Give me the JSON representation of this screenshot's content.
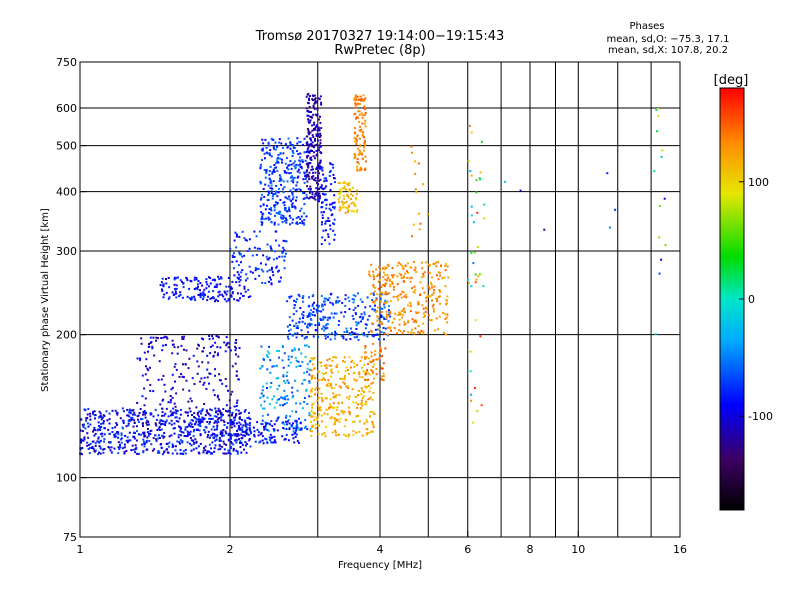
{
  "chart_data": {
    "type": "scatter",
    "title": "Tromsø 20170327 19:14:00−19:15:43",
    "subtitle": "RwPretec (8p)",
    "xlabel": "Frequency [MHz]",
    "ylabel": "Stationary phase Virtual Height [km]",
    "x_scale": "log",
    "y_scale": "log",
    "xlim": [
      1,
      16
    ],
    "ylim": [
      75,
      750
    ],
    "x_ticks": [
      1,
      2,
      4,
      6,
      8,
      10,
      16
    ],
    "x_grid_lines": [
      2,
      3,
      4,
      5,
      6,
      7,
      8,
      9,
      10,
      12,
      14
    ],
    "y_ticks": [
      75,
      100,
      200,
      300,
      400,
      500,
      600,
      750
    ],
    "y_grid_lines": [
      100,
      200,
      300,
      400,
      500,
      600
    ],
    "grid": true,
    "colorbar": {
      "label": "[deg]",
      "range": [
        -180,
        180
      ],
      "ticks": [
        100,
        0,
        -100
      ]
    },
    "stats": {
      "heading": "Phases",
      "line1": "mean, sd,O: −75.3, 17.1",
      "line2": "mean, sd,X: 107.8, 20.2"
    },
    "clusters": [
      {
        "x": [
          1.0,
          2.2
        ],
        "y": [
          112,
          140
        ],
        "phase": [
          -120,
          -60
        ],
        "n": 700
      },
      {
        "x": [
          1.3,
          2.1
        ],
        "y": [
          130,
          200
        ],
        "phase": [
          -130,
          -80
        ],
        "n": 230
      },
      {
        "x": [
          1.45,
          2.2
        ],
        "y": [
          235,
          265
        ],
        "phase": [
          -110,
          -70
        ],
        "n": 160
      },
      {
        "x": [
          2.0,
          2.6
        ],
        "y": [
          255,
          330
        ],
        "phase": [
          -100,
          -60
        ],
        "n": 110
      },
      {
        "x": [
          2.3,
          2.85
        ],
        "y": [
          340,
          520
        ],
        "phase": [
          -95,
          -50
        ],
        "n": 320
      },
      {
        "x": [
          2.85,
          3.05
        ],
        "y": [
          380,
          650
        ],
        "phase": [
          -135,
          -95
        ],
        "n": 230
      },
      {
        "x": [
          3.05,
          3.25
        ],
        "y": [
          310,
          460
        ],
        "phase": [
          -105,
          -65
        ],
        "n": 80
      },
      {
        "x": [
          3.3,
          3.6
        ],
        "y": [
          360,
          420
        ],
        "phase": [
          95,
          130
        ],
        "n": 70
      },
      {
        "x": [
          3.55,
          3.75
        ],
        "y": [
          440,
          640
        ],
        "phase": [
          120,
          150
        ],
        "n": 110
      },
      {
        "x": [
          2.6,
          4.2
        ],
        "y": [
          195,
          245
        ],
        "phase": [
          -90,
          -45
        ],
        "n": 280
      },
      {
        "x": [
          3.8,
          5.5
        ],
        "y": [
          200,
          285
        ],
        "phase": [
          110,
          150
        ],
        "n": 300
      },
      {
        "x": [
          2.3,
          2.9
        ],
        "y": [
          125,
          190
        ],
        "phase": [
          -80,
          -10
        ],
        "n": 160
      },
      {
        "x": [
          2.9,
          3.9
        ],
        "y": [
          122,
          180
        ],
        "phase": [
          95,
          140
        ],
        "n": 300
      },
      {
        "x": [
          2.0,
          2.8
        ],
        "y": [
          118,
          132
        ],
        "phase": [
          -110,
          -70
        ],
        "n": 130
      },
      {
        "x": [
          3.7,
          4.1
        ],
        "y": [
          160,
          192
        ],
        "phase": [
          120,
          160
        ],
        "n": 45
      },
      {
        "x": [
          6.0,
          6.5
        ],
        "y": [
          130,
          560
        ],
        "phase": [
          -60,
          170
        ],
        "n": 40
      },
      {
        "x": [
          4.5,
          5.0
        ],
        "y": [
          300,
          520
        ],
        "phase": [
          100,
          150
        ],
        "n": 14
      },
      {
        "x": [
          14.2,
          15.0
        ],
        "y": [
          130,
          640
        ],
        "phase": [
          -110,
          130
        ],
        "n": 14
      },
      {
        "x": [
          6.9,
          12.0
        ],
        "y": [
          300,
          500
        ],
        "phase": [
          -120,
          150
        ],
        "n": 6
      }
    ]
  }
}
